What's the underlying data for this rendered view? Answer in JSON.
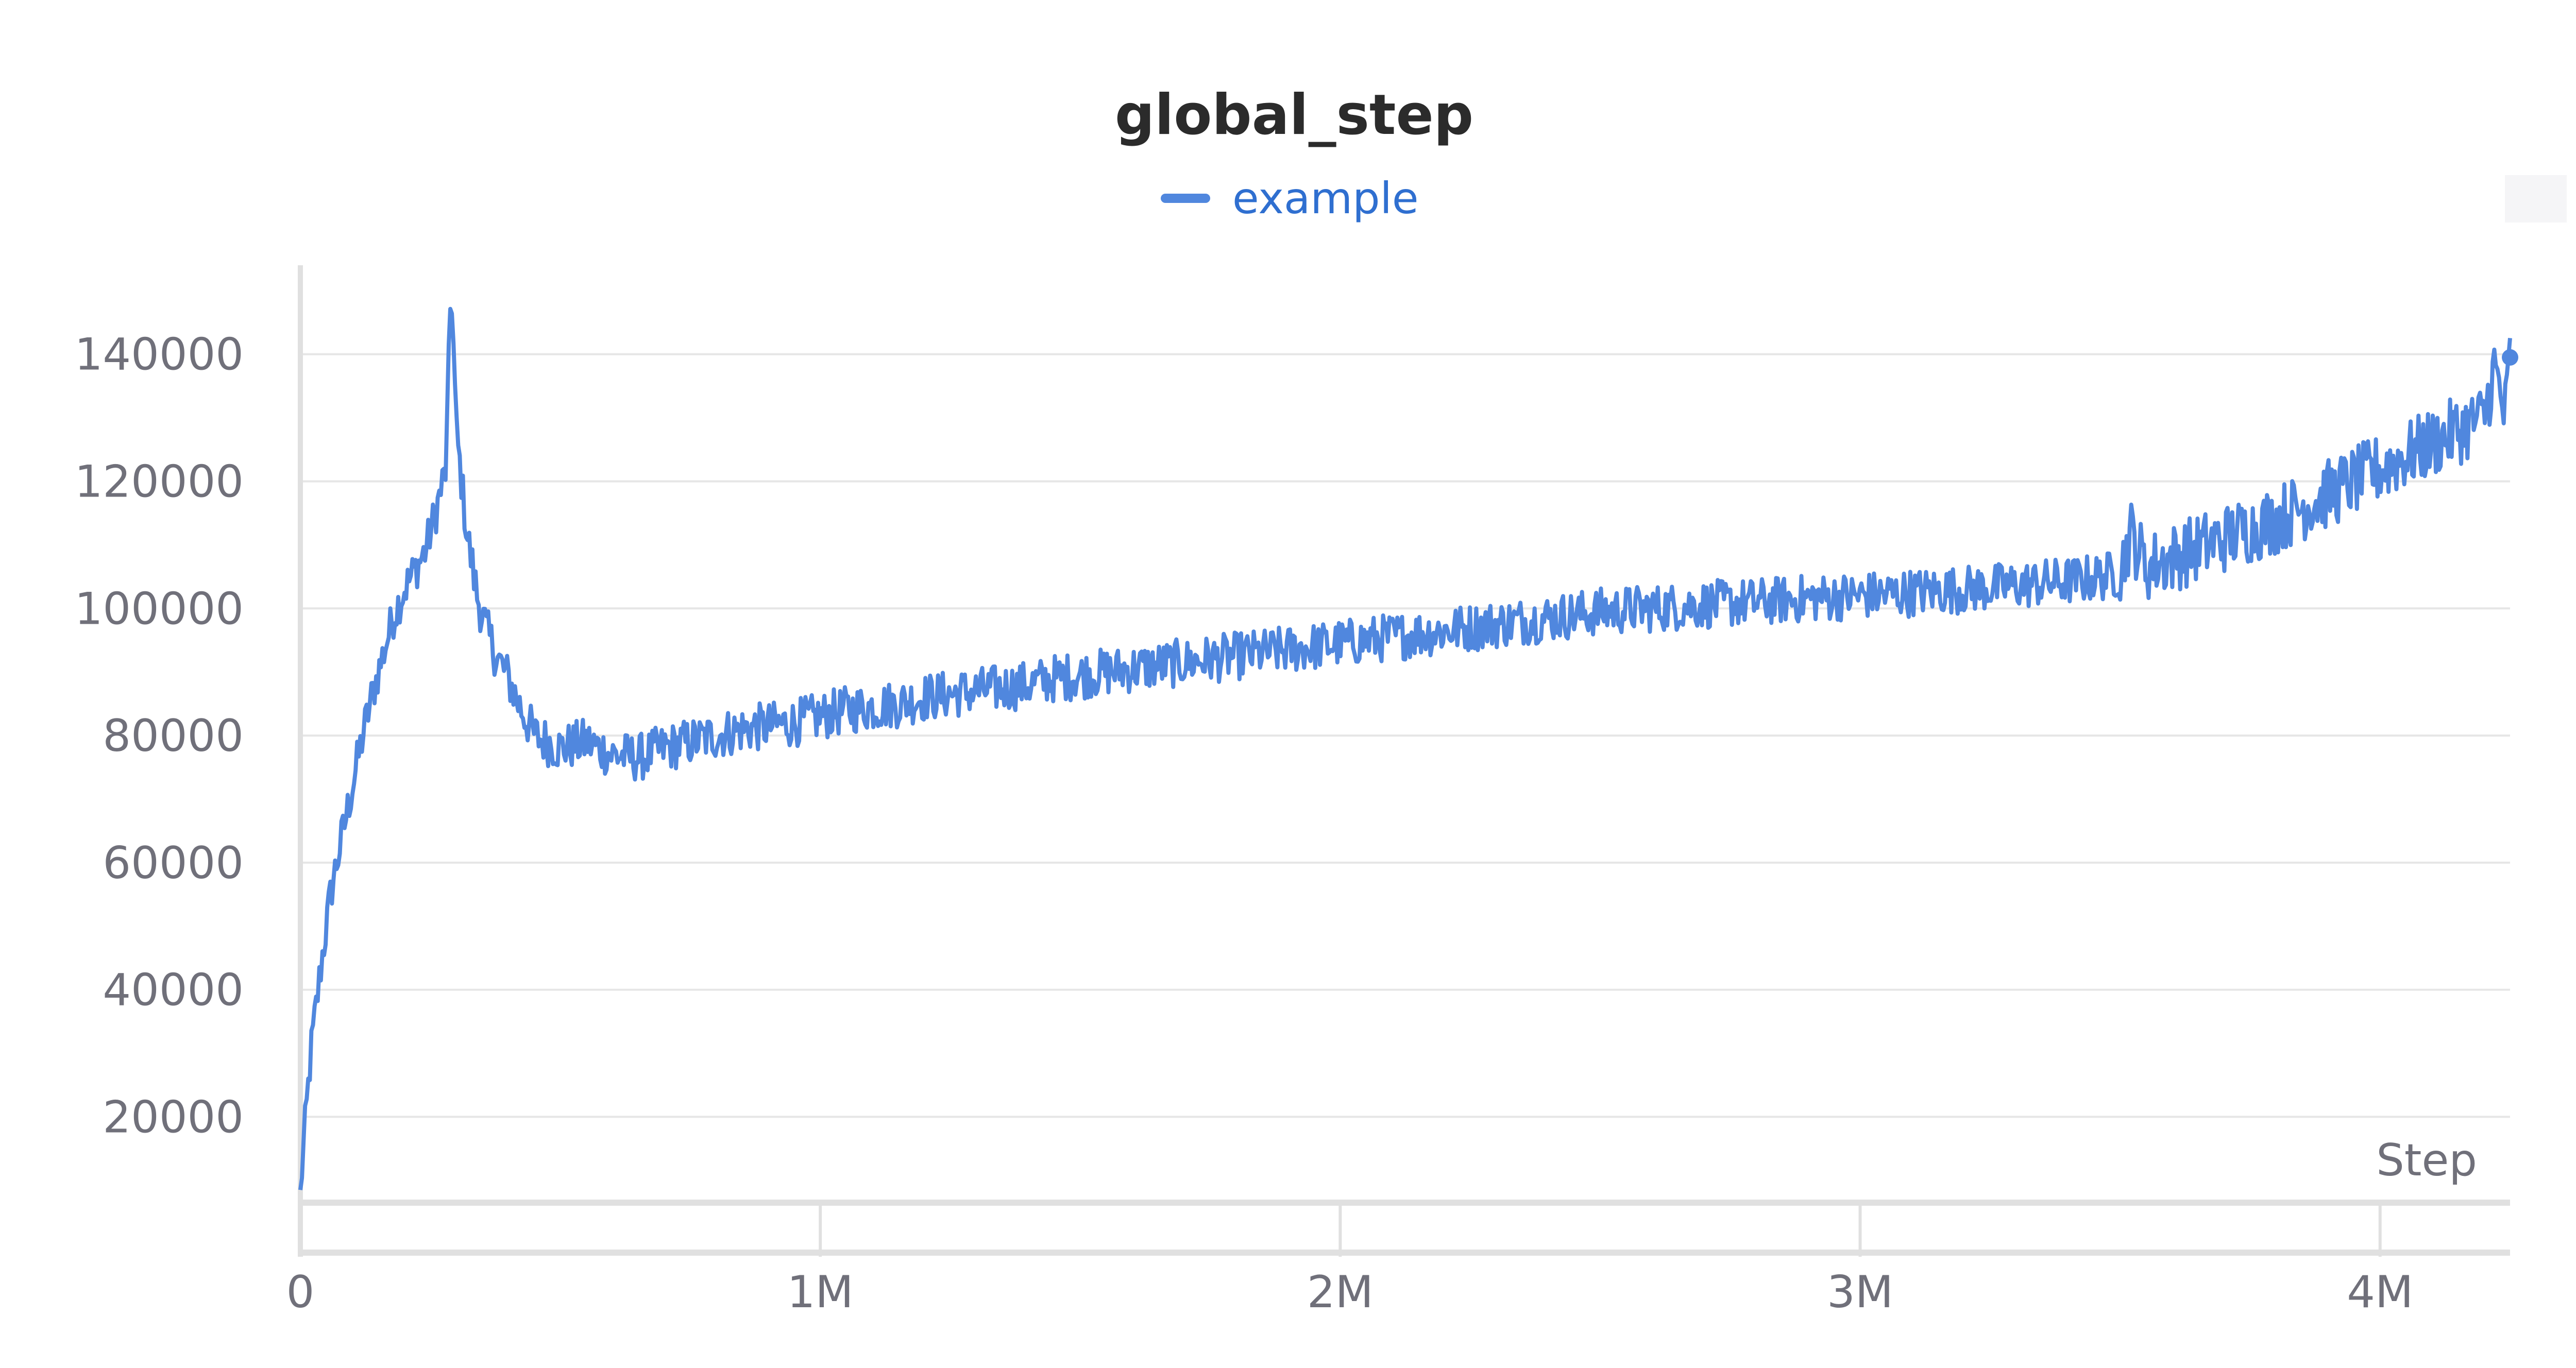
{
  "chart_data": {
    "type": "line",
    "title": "global_step",
    "xlabel": "Step",
    "ylabel": "",
    "xlim": [
      0,
      4250000
    ],
    "ylim": [
      6500,
      154000
    ],
    "x_ticks": [
      {
        "value": 0,
        "label": "0"
      },
      {
        "value": 1000000,
        "label": "1M"
      },
      {
        "value": 2000000,
        "label": "2M"
      },
      {
        "value": 3000000,
        "label": "3M"
      },
      {
        "value": 4000000,
        "label": "4M"
      }
    ],
    "y_ticks": [
      {
        "value": 20000,
        "label": "20000"
      },
      {
        "value": 40000,
        "label": "40000"
      },
      {
        "value": 60000,
        "label": "60000"
      },
      {
        "value": 80000,
        "label": "80000"
      },
      {
        "value": 100000,
        "label": "100000"
      },
      {
        "value": 120000,
        "label": "120000"
      },
      {
        "value": 140000,
        "label": "140000"
      }
    ],
    "grid": true,
    "legend_position": "top-center",
    "colors": {
      "series": "#5087de",
      "legend_text": "#2f6fd0",
      "grid": "#e6e6e6",
      "axis": "#e0e0e0",
      "tick_text": "#70707a",
      "title": "#2b2b2b"
    },
    "series": [
      {
        "name": "example",
        "x": [
          0,
          20000,
          40000,
          60000,
          80000,
          100000,
          120000,
          140000,
          160000,
          180000,
          200000,
          220000,
          240000,
          260000,
          280000,
          290000,
          300000,
          320000,
          340000,
          360000,
          380000,
          400000,
          420000,
          450000,
          500000,
          550000,
          600000,
          650000,
          700000,
          750000,
          800000,
          850000,
          900000,
          950000,
          1000000,
          1050000,
          1100000,
          1150000,
          1200000,
          1250000,
          1300000,
          1350000,
          1400000,
          1450000,
          1500000,
          1550000,
          1600000,
          1650000,
          1700000,
          1750000,
          1800000,
          1850000,
          1900000,
          1950000,
          2000000,
          2050000,
          2100000,
          2150000,
          2200000,
          2250000,
          2300000,
          2350000,
          2400000,
          2450000,
          2500000,
          2550000,
          2600000,
          2650000,
          2700000,
          2750000,
          2800000,
          2850000,
          2900000,
          2950000,
          3000000,
          3050000,
          3100000,
          3150000,
          3200000,
          3250000,
          3300000,
          3350000,
          3400000,
          3450000,
          3500000,
          3520000,
          3550000,
          3600000,
          3650000,
          3700000,
          3750000,
          3800000,
          3850000,
          3900000,
          3950000,
          4000000,
          4050000,
          4100000,
          4150000,
          4200000,
          4220000,
          4240000,
          4250000
        ],
        "values": [
          8500,
          30000,
          44000,
          56000,
          64000,
          72000,
          80000,
          87000,
          93000,
          99000,
          103000,
          106000,
          109000,
          115000,
          122000,
          152000,
          128000,
          112000,
          102000,
          96000,
          92000,
          89000,
          85000,
          80000,
          78000,
          79000,
          77000,
          76500,
          78000,
          79000,
          80000,
          81000,
          81500,
          82000,
          83000,
          84000,
          84500,
          85000,
          86000,
          86500,
          87000,
          87500,
          88000,
          89000,
          89500,
          90000,
          90500,
          91000,
          91500,
          92000,
          92500,
          93000,
          93500,
          94000,
          94500,
          95000,
          95500,
          96000,
          96500,
          97000,
          97500,
          98000,
          98500,
          99000,
          99500,
          99800,
          100000,
          100300,
          100600,
          100800,
          101000,
          101300,
          101600,
          101800,
          102000,
          102200,
          102500,
          102800,
          103000,
          103300,
          103600,
          104000,
          104300,
          104800,
          105500,
          112000,
          106500,
          108000,
          109500,
          111000,
          112500,
          114000,
          116000,
          118000,
          120000,
          122000,
          124000,
          126000,
          128000,
          130000,
          138000,
          130000,
          139500
        ]
      }
    ]
  }
}
